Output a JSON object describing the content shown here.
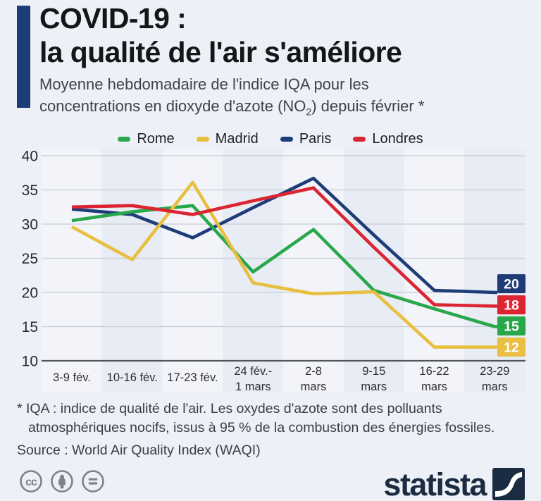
{
  "header": {
    "title_line1": "COVID-19 :",
    "title_line2": "la qualité de l'air s'améliore",
    "subtitle_line1": "Moyenne hebdomadaire de l'indice IQA pour les",
    "subtitle_line2_pre": "concentrations en dioxyde d'azote (NO",
    "subtitle_subscript": "2",
    "subtitle_line2_post": ") depuis février *",
    "accent_bar_color": "#1e3c78"
  },
  "chart_data": {
    "type": "line",
    "title": "",
    "xlabel": "",
    "ylabel": "",
    "categories": [
      "3-9 fév.",
      "10-16 fév.",
      "17-23 fév.",
      "24 fév.-\n1 mars",
      "2-8\nmars",
      "9-15\nmars",
      "16-22\nmars",
      "23-29\nmars"
    ],
    "series": [
      {
        "name": "Rome",
        "color": "#29a84b",
        "values": [
          30.5,
          31.8,
          32.7,
          23.0,
          29.2,
          20.3,
          17.6,
          15.0
        ],
        "end_label": "15"
      },
      {
        "name": "Madrid",
        "color": "#e9bf41",
        "values": [
          29.6,
          24.8,
          36.1,
          21.4,
          19.8,
          20.1,
          12.0,
          12.0
        ],
        "end_label": "12"
      },
      {
        "name": "Paris",
        "color": "#1d3c78",
        "values": [
          32.2,
          31.4,
          28.0,
          32.4,
          36.7,
          28.4,
          20.3,
          20.0
        ],
        "end_label": "20"
      },
      {
        "name": "Londres",
        "color": "#dc2533",
        "values": [
          32.5,
          32.7,
          31.4,
          33.4,
          35.3,
          26.6,
          18.2,
          18.0
        ],
        "end_label": "18"
      }
    ],
    "y_ticks": [
      40,
      35,
      30,
      25,
      20,
      15,
      10
    ],
    "ylim": [
      10,
      40
    ],
    "grid": true,
    "legend_position": "top",
    "band_colors": {
      "odd": "#e7ecf5",
      "even": "#f2f4f9"
    },
    "grid_color": "#c8ccd4",
    "axis_color": "#515459",
    "tick_label_color": "#27292c",
    "end_label_text_color": "#ffffff"
  },
  "footnote": {
    "line1": "* IQA : indice de qualité de l'air. Les oxydes d'azote sont des polluants",
    "line2": "atmosphériques nocifs, issus à 95 % de la combustion des énergies fossiles.",
    "source": "Source : World Air Quality Index (WAQI)"
  },
  "footer": {
    "brand_wordmark": "statista",
    "brand_color": "#1b2c42",
    "license_icon_color": "#7e8286",
    "license_icons": [
      "cc-icon",
      "attribution-icon",
      "equal-icon"
    ]
  }
}
